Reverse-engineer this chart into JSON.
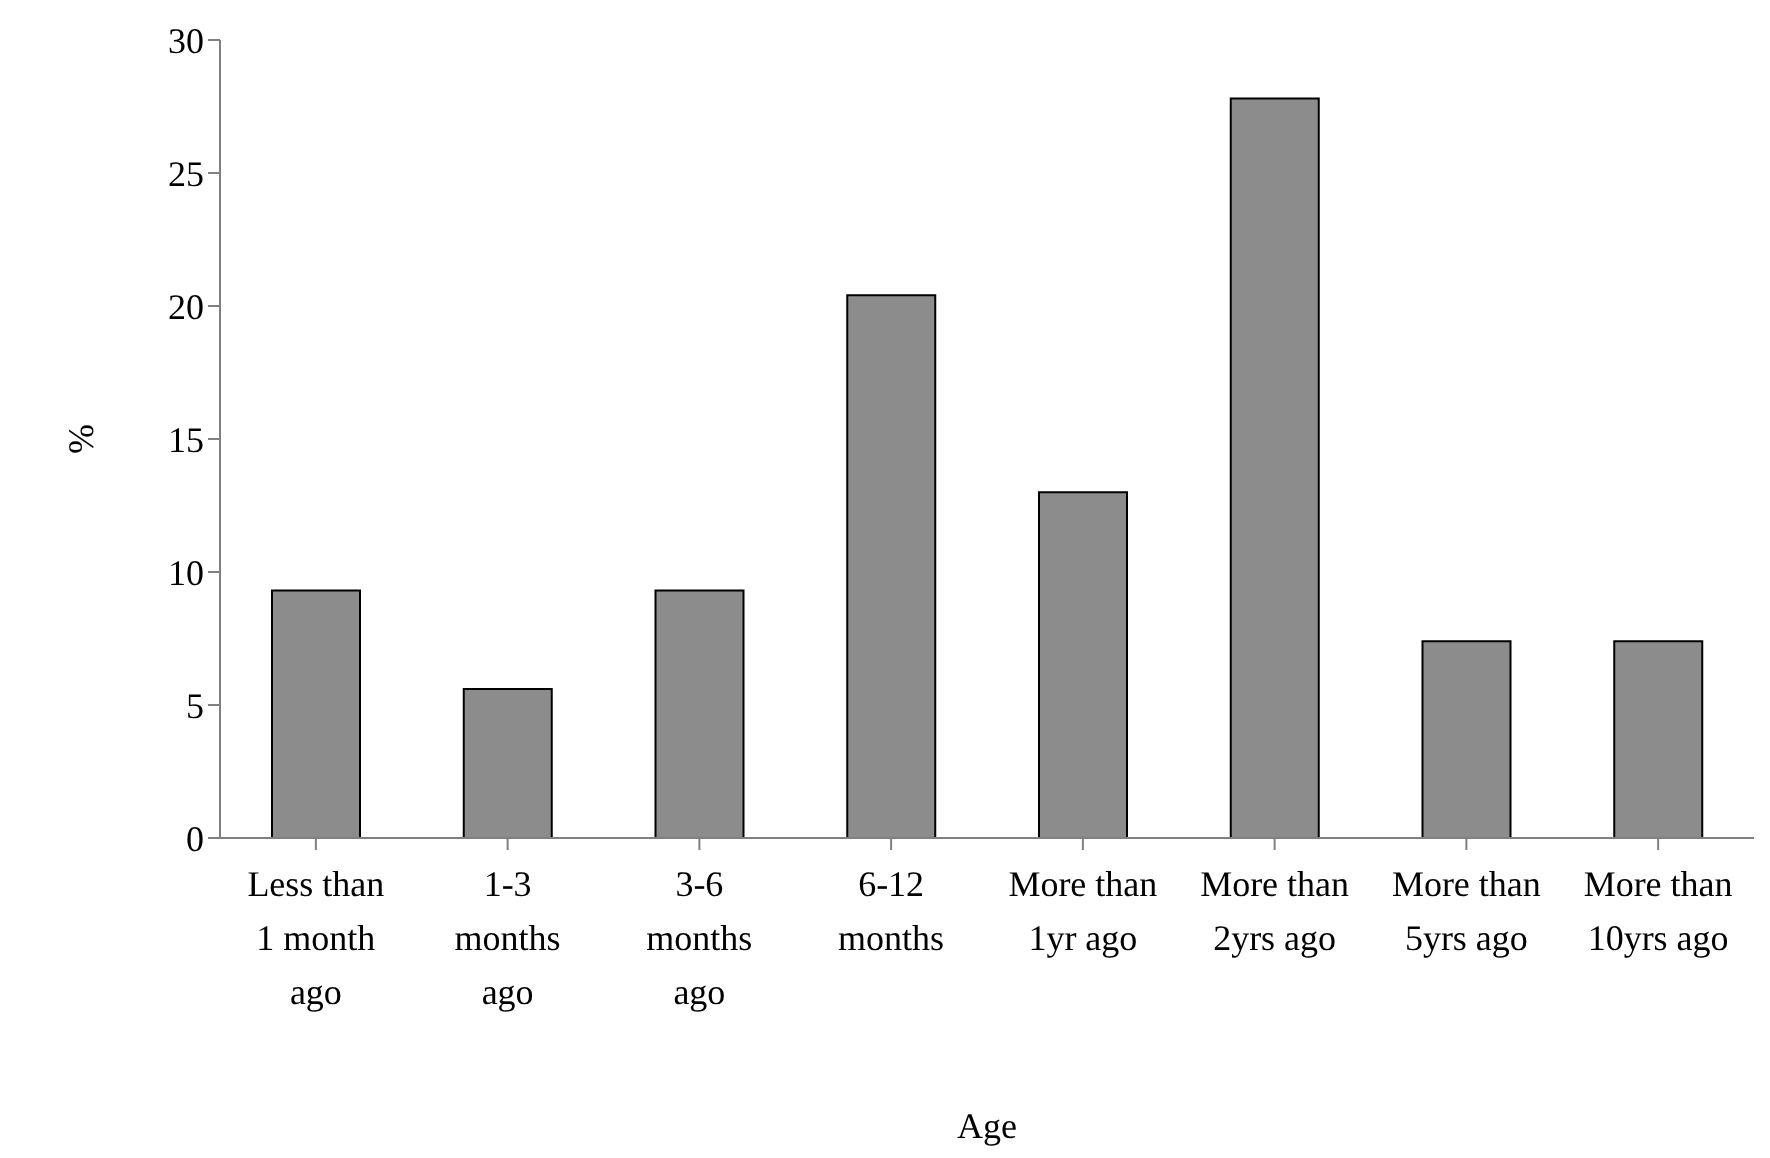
{
  "chart_data": {
    "type": "bar",
    "xlabel": "Age",
    "ylabel": "%",
    "categories": [
      "Less than 1 month ago",
      "1-3 months ago",
      "3-6 months ago",
      "6-12 months",
      "More than 1yr ago",
      "More than 2yrs ago",
      "More than 5yrs ago",
      "More than 10yrs ago"
    ],
    "values": [
      9.3,
      5.6,
      9.3,
      20.4,
      13.0,
      27.8,
      7.4,
      7.4
    ],
    "color": "#8c8c8c",
    "ylim": [
      0,
      30
    ],
    "yticks": [
      0,
      5,
      10,
      15,
      20,
      25,
      30
    ],
    "grid": false
  }
}
